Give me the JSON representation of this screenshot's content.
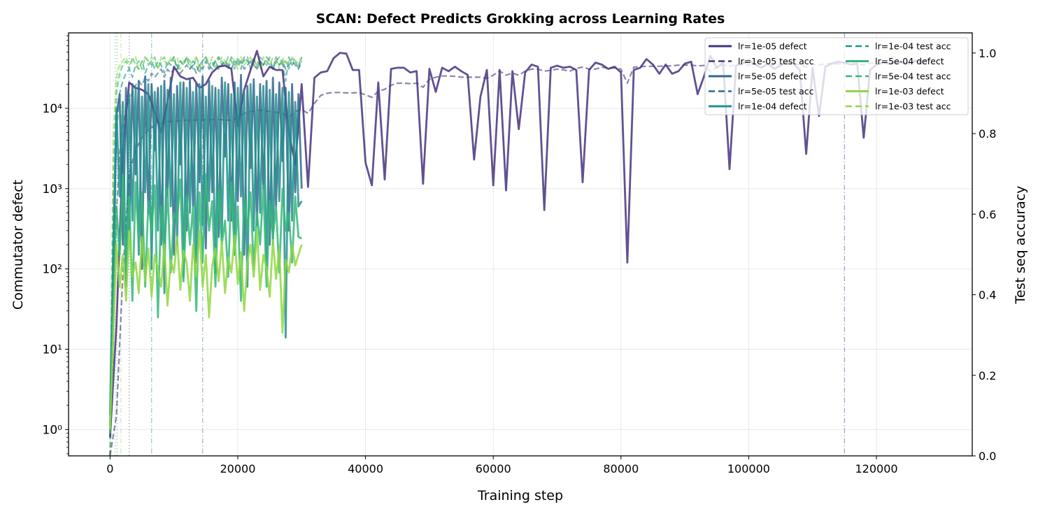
{
  "chart_data": {
    "type": "line",
    "title": "SCAN: Defect Predicts Grokking across Learning Rates",
    "xlabel": "Training step",
    "ylabel_left": "Commutator defect",
    "ylabel_right": "Test seq accuracy",
    "xlim": [
      -6500,
      135000
    ],
    "ylim_left": [
      0.47,
      87000
    ],
    "ylim_right": [
      0,
      1.05
    ],
    "yscale_left": "log",
    "grid": true,
    "legend_placement": "top-right",
    "x_ticks": [
      0,
      20000,
      40000,
      60000,
      80000,
      100000,
      120000
    ],
    "x_tick_labels": [
      "0",
      "20000",
      "40000",
      "60000",
      "80000",
      "100000",
      "120000"
    ],
    "y_left_ticks": [
      1,
      10,
      100,
      1000,
      10000
    ],
    "y_left_tick_labels": [
      "10⁰",
      "10¹",
      "10²",
      "10³",
      "10⁴"
    ],
    "y_right_ticks": [
      0,
      0.2,
      0.4,
      0.6,
      0.8,
      1.0
    ],
    "y_right_tick_labels": [
      "0.0",
      "0.2",
      "0.4",
      "0.6",
      "0.8",
      "1.0"
    ],
    "x_long": [
      0,
      1000,
      2000,
      3000,
      4000,
      5000,
      6000,
      7000,
      8000,
      9000,
      10000,
      11000,
      12000,
      13000,
      14000,
      15000,
      16000,
      17000,
      18000,
      19000,
      20000,
      21000,
      22000,
      23000,
      24000,
      25000,
      26000,
      27000,
      28000,
      29000,
      30000,
      31000,
      32000,
      33000,
      34000,
      35000,
      36000,
      37000,
      38000,
      39000,
      40000,
      41000,
      42000,
      43000,
      44000,
      45000,
      46000,
      47000,
      48000,
      49000,
      50000,
      51000,
      52000,
      53000,
      54000,
      55000,
      56000,
      57000,
      58000,
      59000,
      60000,
      61000,
      62000,
      63000,
      64000,
      65000,
      66000,
      67000,
      68000,
      69000,
      70000,
      71000,
      72000,
      73000,
      74000,
      75000,
      76000,
      77000,
      78000,
      79000,
      80000,
      81000,
      82000,
      83000,
      84000,
      85000,
      86000,
      87000,
      88000,
      89000,
      90000,
      91000,
      92000,
      93000,
      94000,
      95000,
      96000,
      97000,
      98000,
      99000,
      100000,
      101000,
      102000,
      103000,
      104000,
      105000,
      106000,
      107000,
      108000,
      109000,
      110000,
      111000,
      112000,
      113000,
      114000,
      115000,
      116000,
      117000,
      118000,
      119000,
      120000,
      121000,
      122000,
      123000,
      124000,
      125000,
      126000,
      127000,
      128000
    ],
    "x_short": [
      0,
      500,
      1000,
      1500,
      2000,
      2500,
      3000,
      3500,
      4000,
      4500,
      5000,
      5500,
      6000,
      6500,
      7000,
      7500,
      8000,
      8500,
      9000,
      9500,
      10000,
      10500,
      11000,
      11500,
      12000,
      12500,
      13000,
      13500,
      14000,
      14500,
      15000,
      15500,
      16000,
      16500,
      17000,
      17500,
      18000,
      18500,
      19000,
      19500,
      20000,
      20500,
      21000,
      21500,
      22000,
      22500,
      23000,
      23500,
      24000,
      24500,
      25000,
      25500,
      26000,
      26500,
      27000,
      27500,
      28000,
      28500,
      29000,
      29500,
      30000
    ],
    "series": [
      {
        "name": "lr=1e-05 defect",
        "axis": "left",
        "style": "solid",
        "color": "#46327e",
        "x_key": "x_long",
        "values": [
          0.8,
          20,
          3000,
          21000,
          18000,
          17000,
          15000,
          9000,
          5000,
          12000,
          33000,
          25000,
          23000,
          24000,
          18000,
          20000,
          28000,
          33000,
          34000,
          31000,
          6000,
          17000,
          30000,
          52000,
          25000,
          33000,
          30000,
          30000,
          5000,
          2000,
          20000,
          1050,
          24000,
          28000,
          29000,
          42000,
          49000,
          48000,
          30000,
          30000,
          2100,
          1100,
          21000,
          1300,
          31000,
          32000,
          32000,
          28000,
          29000,
          1150,
          31000,
          16000,
          32000,
          29000,
          33000,
          29000,
          26000,
          2300,
          14000,
          30000,
          1100,
          30000,
          950,
          29000,
          5500,
          28000,
          35000,
          33000,
          540,
          32000,
          34000,
          32000,
          33000,
          30000,
          1200,
          30000,
          37000,
          35000,
          31000,
          33000,
          28000,
          120,
          30000,
          32000,
          41000,
          35000,
          27000,
          35000,
          27000,
          29000,
          36000,
          38000,
          15000,
          25000,
          45000,
          32000,
          37000,
          1750,
          34000,
          36000,
          40000,
          35000,
          32000,
          36000,
          31000,
          34000,
          38000,
          36000,
          30000,
          2700,
          32000,
          8000,
          33000,
          36000,
          38000,
          37000,
          35000,
          36000,
          4300,
          30000,
          35000,
          37000,
          36000,
          38000,
          37000,
          36000,
          39000,
          38000,
          40000
        ]
      },
      {
        "name": "lr=1e-05 test acc",
        "axis": "right",
        "style": "dashed",
        "color": "#46327e",
        "x_key": "x_long",
        "values": [
          0,
          0.1,
          0.45,
          0.7,
          0.76,
          0.79,
          0.81,
          0.82,
          0.825,
          0.83,
          0.83,
          0.832,
          0.833,
          0.833,
          0.834,
          0.834,
          0.835,
          0.835,
          0.834,
          0.833,
          0.84,
          0.85,
          0.855,
          0.858,
          0.857,
          0.855,
          0.853,
          0.85,
          0.84,
          0.855,
          0.86,
          0.85,
          0.875,
          0.895,
          0.9,
          0.902,
          0.902,
          0.901,
          0.901,
          0.902,
          0.896,
          0.89,
          0.905,
          0.91,
          0.92,
          0.925,
          0.925,
          0.924,
          0.925,
          0.915,
          0.935,
          0.94,
          0.943,
          0.943,
          0.942,
          0.94,
          0.94,
          0.94,
          0.94,
          0.937,
          0.945,
          0.955,
          0.945,
          0.95,
          0.945,
          0.955,
          0.96,
          0.96,
          0.955,
          0.957,
          0.96,
          0.958,
          0.955,
          0.962,
          0.965,
          0.96,
          0.96,
          0.965,
          0.962,
          0.963,
          0.96,
          0.925,
          0.965,
          0.966,
          0.967,
          0.967,
          0.967,
          0.968,
          0.968,
          0.97,
          0.97,
          0.97,
          0.968,
          0.969,
          0.955,
          0.965,
          0.97,
          0.968,
          0.97,
          0.972,
          0.97,
          0.972,
          0.965,
          0.972,
          0.97,
          0.972,
          0.973,
          0.97,
          0.972,
          0.965,
          0.972,
          0.97,
          0.973,
          0.974,
          0.973,
          0.975,
          0.973,
          0.974,
          0.97,
          0.975,
          0.974,
          0.975,
          0.976,
          0.975,
          0.976,
          0.975,
          0.977,
          0.976,
          0.977
        ]
      },
      {
        "name": "lr=5e-05 defect",
        "axis": "left",
        "style": "solid",
        "color": "#31688e",
        "x_key": "x_short",
        "values": [
          1,
          50,
          8000,
          15000,
          200,
          18000,
          300,
          20000,
          1500,
          22000,
          100,
          25000,
          500,
          20000,
          3000,
          18000,
          200,
          22000,
          800,
          24000,
          150,
          19000,
          2000,
          21000,
          300,
          23000,
          600,
          20000,
          1200,
          25000,
          180,
          22000,
          900,
          18000,
          250,
          24000,
          2500,
          20000,
          400,
          21000,
          700,
          26000,
          150,
          19000,
          1800,
          23000,
          350,
          20000,
          1000,
          22000,
          200,
          24000,
          600,
          21000,
          2200,
          18000,
          300,
          20000,
          900,
          15000,
          1000
        ]
      },
      {
        "name": "lr=5e-05 test acc",
        "axis": "right",
        "style": "dashed",
        "color": "#31688e",
        "x_key": "x_short",
        "values": [
          0,
          0.3,
          0.6,
          0.75,
          0.82,
          0.86,
          0.88,
          0.9,
          0.92,
          0.93,
          0.92,
          0.94,
          0.93,
          0.95,
          0.94,
          0.95,
          0.96,
          0.94,
          0.96,
          0.95,
          0.96,
          0.97,
          0.95,
          0.96,
          0.97,
          0.96,
          0.97,
          0.95,
          0.97,
          0.96,
          0.98,
          0.96,
          0.97,
          0.98,
          0.96,
          0.97,
          0.98,
          0.97,
          0.96,
          0.98,
          0.97,
          0.98,
          0.96,
          0.97,
          0.98,
          0.97,
          0.96,
          0.98,
          0.97,
          0.98,
          0.97,
          0.96,
          0.98,
          0.97,
          0.98,
          0.96,
          0.97,
          0.98,
          0.97,
          0.96,
          0.98
        ]
      },
      {
        "name": "lr=1e-04 defect",
        "axis": "left",
        "style": "solid",
        "color": "#21918c",
        "x_key": "x_short",
        "values": [
          1.5,
          200,
          10000,
          800,
          12000,
          60,
          15000,
          400,
          18000,
          150,
          14000,
          900,
          20000,
          100,
          16000,
          300,
          19000,
          50,
          17000,
          600,
          15000,
          200,
          21000,
          80,
          18000,
          500,
          16000,
          120,
          20000,
          350,
          14000,
          700,
          19000,
          90,
          17000,
          250,
          21000,
          400,
          15000,
          150,
          18000,
          800,
          16000,
          60,
          20000,
          300,
          14000,
          500,
          19000,
          100,
          17000,
          200,
          15000,
          700,
          18000,
          14,
          16000,
          400,
          12000,
          600,
          700
        ]
      },
      {
        "name": "lr=1e-04 test acc",
        "axis": "right",
        "style": "dashed",
        "color": "#21918c",
        "x_key": "x_short",
        "values": [
          0,
          0.5,
          0.8,
          0.9,
          0.93,
          0.95,
          0.96,
          0.94,
          0.97,
          0.96,
          0.98,
          0.95,
          0.97,
          0.98,
          0.96,
          0.98,
          0.97,
          0.95,
          0.98,
          0.97,
          0.99,
          0.96,
          0.98,
          0.97,
          0.99,
          0.96,
          0.98,
          0.97,
          0.95,
          0.98,
          0.99,
          0.97,
          0.96,
          0.98,
          0.99,
          0.97,
          0.98,
          0.96,
          0.99,
          0.97,
          0.98,
          0.96,
          0.99,
          0.98,
          0.97,
          0.99,
          0.96,
          0.98,
          0.97,
          0.99,
          0.98,
          0.96,
          0.99,
          0.97,
          0.98,
          0.93,
          0.99,
          0.97,
          0.98,
          0.96,
          0.99
        ]
      },
      {
        "name": "lr=5e-04 defect",
        "axis": "left",
        "style": "solid",
        "color": "#35b779",
        "x_key": "x_short",
        "values": [
          0.9,
          30,
          600,
          150,
          1500,
          80,
          800,
          40,
          1200,
          200,
          900,
          60,
          700,
          300,
          1100,
          25,
          600,
          150,
          1000,
          90,
          500,
          400,
          1300,
          70,
          800,
          200,
          600,
          30,
          900,
          120,
          1500,
          300,
          700,
          60,
          1000,
          200,
          400,
          80,
          1200,
          150,
          600,
          40,
          800,
          300,
          900,
          100,
          500,
          200,
          1100,
          60,
          700,
          250,
          600,
          90,
          1000,
          300,
          500,
          120,
          800,
          250,
          240
        ]
      },
      {
        "name": "lr=5e-04 test acc",
        "axis": "right",
        "style": "dashed",
        "color": "#35b779",
        "x_key": "x_short",
        "values": [
          0,
          0.7,
          0.9,
          0.95,
          0.97,
          0.98,
          0.96,
          0.99,
          0.97,
          0.98,
          0.96,
          0.99,
          0.98,
          0.97,
          0.99,
          0.96,
          0.98,
          0.99,
          0.97,
          0.98,
          0.99,
          0.96,
          0.98,
          0.97,
          0.99,
          0.98,
          0.96,
          0.99,
          0.97,
          0.98,
          0.99,
          0.97,
          0.98,
          0.96,
          0.99,
          0.98,
          0.97,
          0.99,
          0.98,
          0.96,
          0.99,
          0.97,
          0.98,
          0.99,
          0.96,
          0.98,
          0.97,
          0.99,
          0.98,
          0.97,
          0.99,
          0.96,
          0.98,
          0.99,
          0.97,
          0.98,
          0.96,
          0.99,
          0.98,
          0.97,
          0.99
        ]
      },
      {
        "name": "lr=1e-03 defect",
        "axis": "left",
        "style": "solid",
        "color": "#90d743",
        "x_key": "x_short",
        "values": [
          1,
          15,
          200,
          60,
          150,
          40,
          300,
          80,
          120,
          50,
          250,
          70,
          180,
          45,
          150,
          100,
          60,
          200,
          35,
          130,
          90,
          250,
          55,
          170,
          120,
          40,
          200,
          80,
          300,
          60,
          150,
          25,
          110,
          180,
          70,
          220,
          50,
          140,
          90,
          260,
          65,
          160,
          30,
          120,
          200,
          80,
          300,
          55,
          150,
          100,
          45,
          230,
          75,
          180,
          16,
          130,
          90,
          200,
          110,
          150,
          200
        ]
      },
      {
        "name": "lr=1e-03 test acc",
        "axis": "right",
        "style": "dashed",
        "color": "#90d743",
        "x_key": "x_short",
        "values": [
          0,
          0.8,
          0.94,
          0.97,
          0.98,
          0.99,
          0.97,
          0.98,
          0.99,
          0.96,
          0.98,
          0.99,
          0.97,
          0.99,
          0.98,
          0.96,
          0.99,
          0.98,
          0.97,
          0.99,
          0.98,
          0.99,
          0.96,
          0.98,
          0.99,
          0.97,
          0.98,
          0.99,
          0.96,
          0.98,
          0.99,
          0.97,
          0.99,
          0.98,
          0.96,
          0.99,
          0.98,
          0.97,
          0.99,
          0.98,
          0.96,
          0.99,
          0.97,
          0.98,
          0.99,
          0.97,
          0.98,
          0.96,
          0.99,
          0.98,
          0.97,
          0.99,
          0.98,
          0.96,
          0.99,
          0.97,
          0.98,
          0.99,
          0.97,
          0.98,
          0.99
        ]
      }
    ],
    "vertical_markers": [
      {
        "step": 800,
        "color": "#35b779",
        "style": "dotted"
      },
      {
        "step": 1100,
        "color": "#21918c",
        "style": "dotted"
      },
      {
        "step": 1700,
        "color": "#90d743",
        "style": "dashdot"
      },
      {
        "step": 3000,
        "color": "#46327e",
        "style": "dotted"
      },
      {
        "step": 6500,
        "color": "#21918c",
        "style": "dashdot"
      },
      {
        "step": 14500,
        "color": "#31688e",
        "style": "dashdot"
      },
      {
        "step": 115000,
        "color": "#46327e",
        "style": "dashdot"
      }
    ]
  }
}
